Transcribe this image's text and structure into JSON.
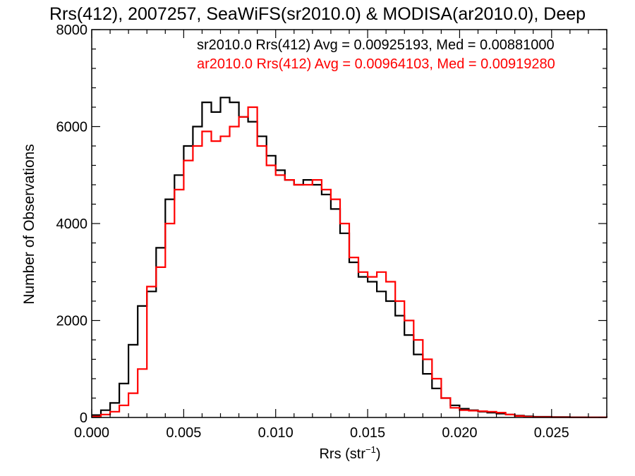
{
  "chart_data": {
    "type": "line",
    "title": "Rrs(412), 2007257, SeaWiFS(sr2010.0) & MODISA(ar2010.0), Deep",
    "xlabel_main": "Rrs (str",
    "xlabel_sup": "−1",
    "xlabel_close": ")",
    "ylabel": "Number of Observations",
    "xlim": [
      0.0,
      0.028
    ],
    "ylim": [
      0,
      8000
    ],
    "xticks": [
      0.0,
      0.005,
      0.01,
      0.015,
      0.02,
      0.025
    ],
    "xtick_labels": [
      "0.000",
      "0.005",
      "0.010",
      "0.015",
      "0.020",
      "0.025"
    ],
    "yticks": [
      0,
      2000,
      4000,
      6000,
      8000
    ],
    "ytick_labels": [
      "0",
      "2000",
      "4000",
      "6000",
      "8000"
    ],
    "annotations": [
      {
        "text": "sr2010.0 Rrs(412) Avg = 0.00925193, Med = 0.00881000",
        "color": "#000000"
      },
      {
        "text": "ar2010.0 Rrs(412) Avg = 0.00964103, Med = 0.00919280",
        "color": "#ff0000"
      }
    ],
    "series": [
      {
        "color": "#000000",
        "x": [
          0.0,
          0.0005,
          0.001,
          0.0015,
          0.002,
          0.0025,
          0.003,
          0.0035,
          0.004,
          0.0045,
          0.005,
          0.0055,
          0.006,
          0.0065,
          0.007,
          0.0075,
          0.008,
          0.0085,
          0.009,
          0.0095,
          0.01,
          0.0105,
          0.011,
          0.0115,
          0.012,
          0.0125,
          0.013,
          0.0135,
          0.014,
          0.0145,
          0.015,
          0.0155,
          0.016,
          0.0165,
          0.017,
          0.0175,
          0.018,
          0.0185,
          0.019,
          0.0195,
          0.02,
          0.0205,
          0.021,
          0.0215,
          0.022,
          0.0225,
          0.023,
          0.0235,
          0.024,
          0.025,
          0.026,
          0.027,
          0.028
        ],
        "y": [
          50,
          150,
          300,
          700,
          1500,
          2300,
          2600,
          3500,
          4500,
          5000,
          5600,
          6000,
          6500,
          6300,
          6600,
          6500,
          6200,
          6100,
          5800,
          5400,
          5100,
          4900,
          4800,
          4900,
          4800,
          4600,
          4300,
          3800,
          3200,
          2900,
          2800,
          2600,
          2400,
          2100,
          1700,
          1300,
          900,
          600,
          400,
          250,
          180,
          150,
          120,
          100,
          80,
          60,
          40,
          25,
          15,
          10,
          5,
          3,
          0
        ]
      },
      {
        "color": "#ff0000",
        "x": [
          0.0,
          0.0005,
          0.001,
          0.0015,
          0.002,
          0.0025,
          0.003,
          0.0035,
          0.004,
          0.0045,
          0.005,
          0.0055,
          0.006,
          0.0065,
          0.007,
          0.0075,
          0.008,
          0.0085,
          0.009,
          0.0095,
          0.01,
          0.0105,
          0.011,
          0.0115,
          0.012,
          0.0125,
          0.013,
          0.0135,
          0.014,
          0.0145,
          0.015,
          0.0155,
          0.016,
          0.0165,
          0.017,
          0.0175,
          0.018,
          0.0185,
          0.019,
          0.0195,
          0.02,
          0.0205,
          0.021,
          0.0215,
          0.022,
          0.0225,
          0.023,
          0.0235,
          0.024,
          0.025,
          0.026,
          0.027,
          0.028
        ],
        "y": [
          20,
          60,
          120,
          250,
          500,
          1000,
          2700,
          3100,
          4000,
          4700,
          5300,
          5600,
          5900,
          5700,
          5800,
          6000,
          6200,
          6400,
          5600,
          5200,
          5000,
          4900,
          4800,
          4800,
          4900,
          4700,
          4500,
          4000,
          3300,
          3000,
          2900,
          3000,
          2800,
          2400,
          2000,
          1600,
          1200,
          800,
          400,
          200,
          150,
          140,
          130,
          120,
          100,
          60,
          30,
          15,
          8,
          5,
          3,
          2,
          0
        ]
      }
    ]
  }
}
